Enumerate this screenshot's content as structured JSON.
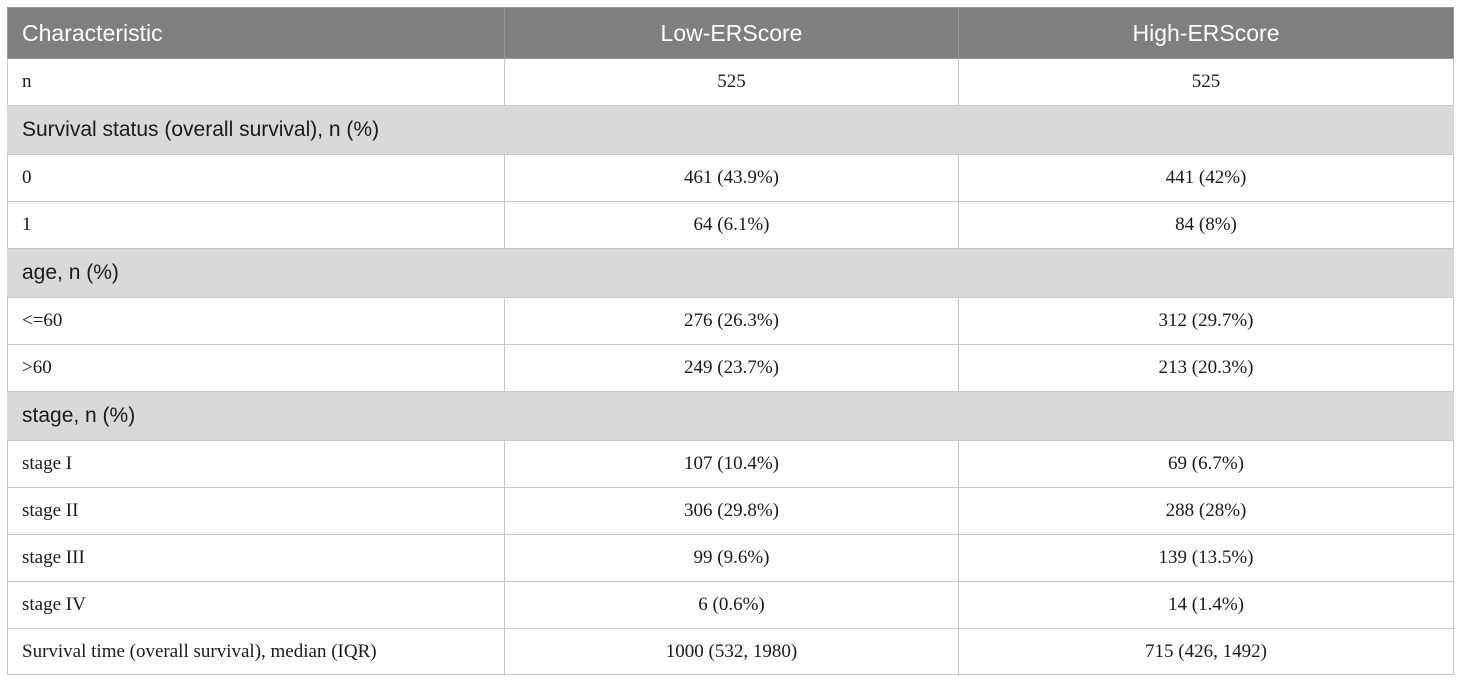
{
  "table": {
    "headers": [
      "Characteristic",
      "Low-ERScore",
      "High-ERScore"
    ],
    "rows": [
      {
        "type": "data",
        "label": "n",
        "low": "525",
        "high": "525"
      },
      {
        "type": "section",
        "label": "Survival status (overall survival), n (%)"
      },
      {
        "type": "data",
        "label": "0",
        "low": "461 (43.9%)",
        "high": "441 (42%)"
      },
      {
        "type": "data",
        "label": "1",
        "low": "64 (6.1%)",
        "high": "84 (8%)"
      },
      {
        "type": "section",
        "label": "age, n (%)"
      },
      {
        "type": "data",
        "label": "<=60",
        "low": "276 (26.3%)",
        "high": "312 (29.7%)"
      },
      {
        "type": "data",
        "label": ">60",
        "low": "249 (23.7%)",
        "high": "213 (20.3%)"
      },
      {
        "type": "section",
        "label": "stage, n (%)"
      },
      {
        "type": "data",
        "label": "stage I",
        "low": "107 (10.4%)",
        "high": "69 (6.7%)"
      },
      {
        "type": "data",
        "label": "stage II",
        "low": "306 (29.8%)",
        "high": "288 (28%)"
      },
      {
        "type": "data",
        "label": "stage III",
        "low": "99 (9.6%)",
        "high": "139 (13.5%)"
      },
      {
        "type": "data",
        "label": "stage IV",
        "low": "6 (0.6%)",
        "high": "14 (1.4%)"
      },
      {
        "type": "data",
        "label": "Survival time (overall survival), median (IQR)",
        "low": "1000 (532, 1980)",
        "high": "715 (426, 1492)"
      }
    ]
  }
}
